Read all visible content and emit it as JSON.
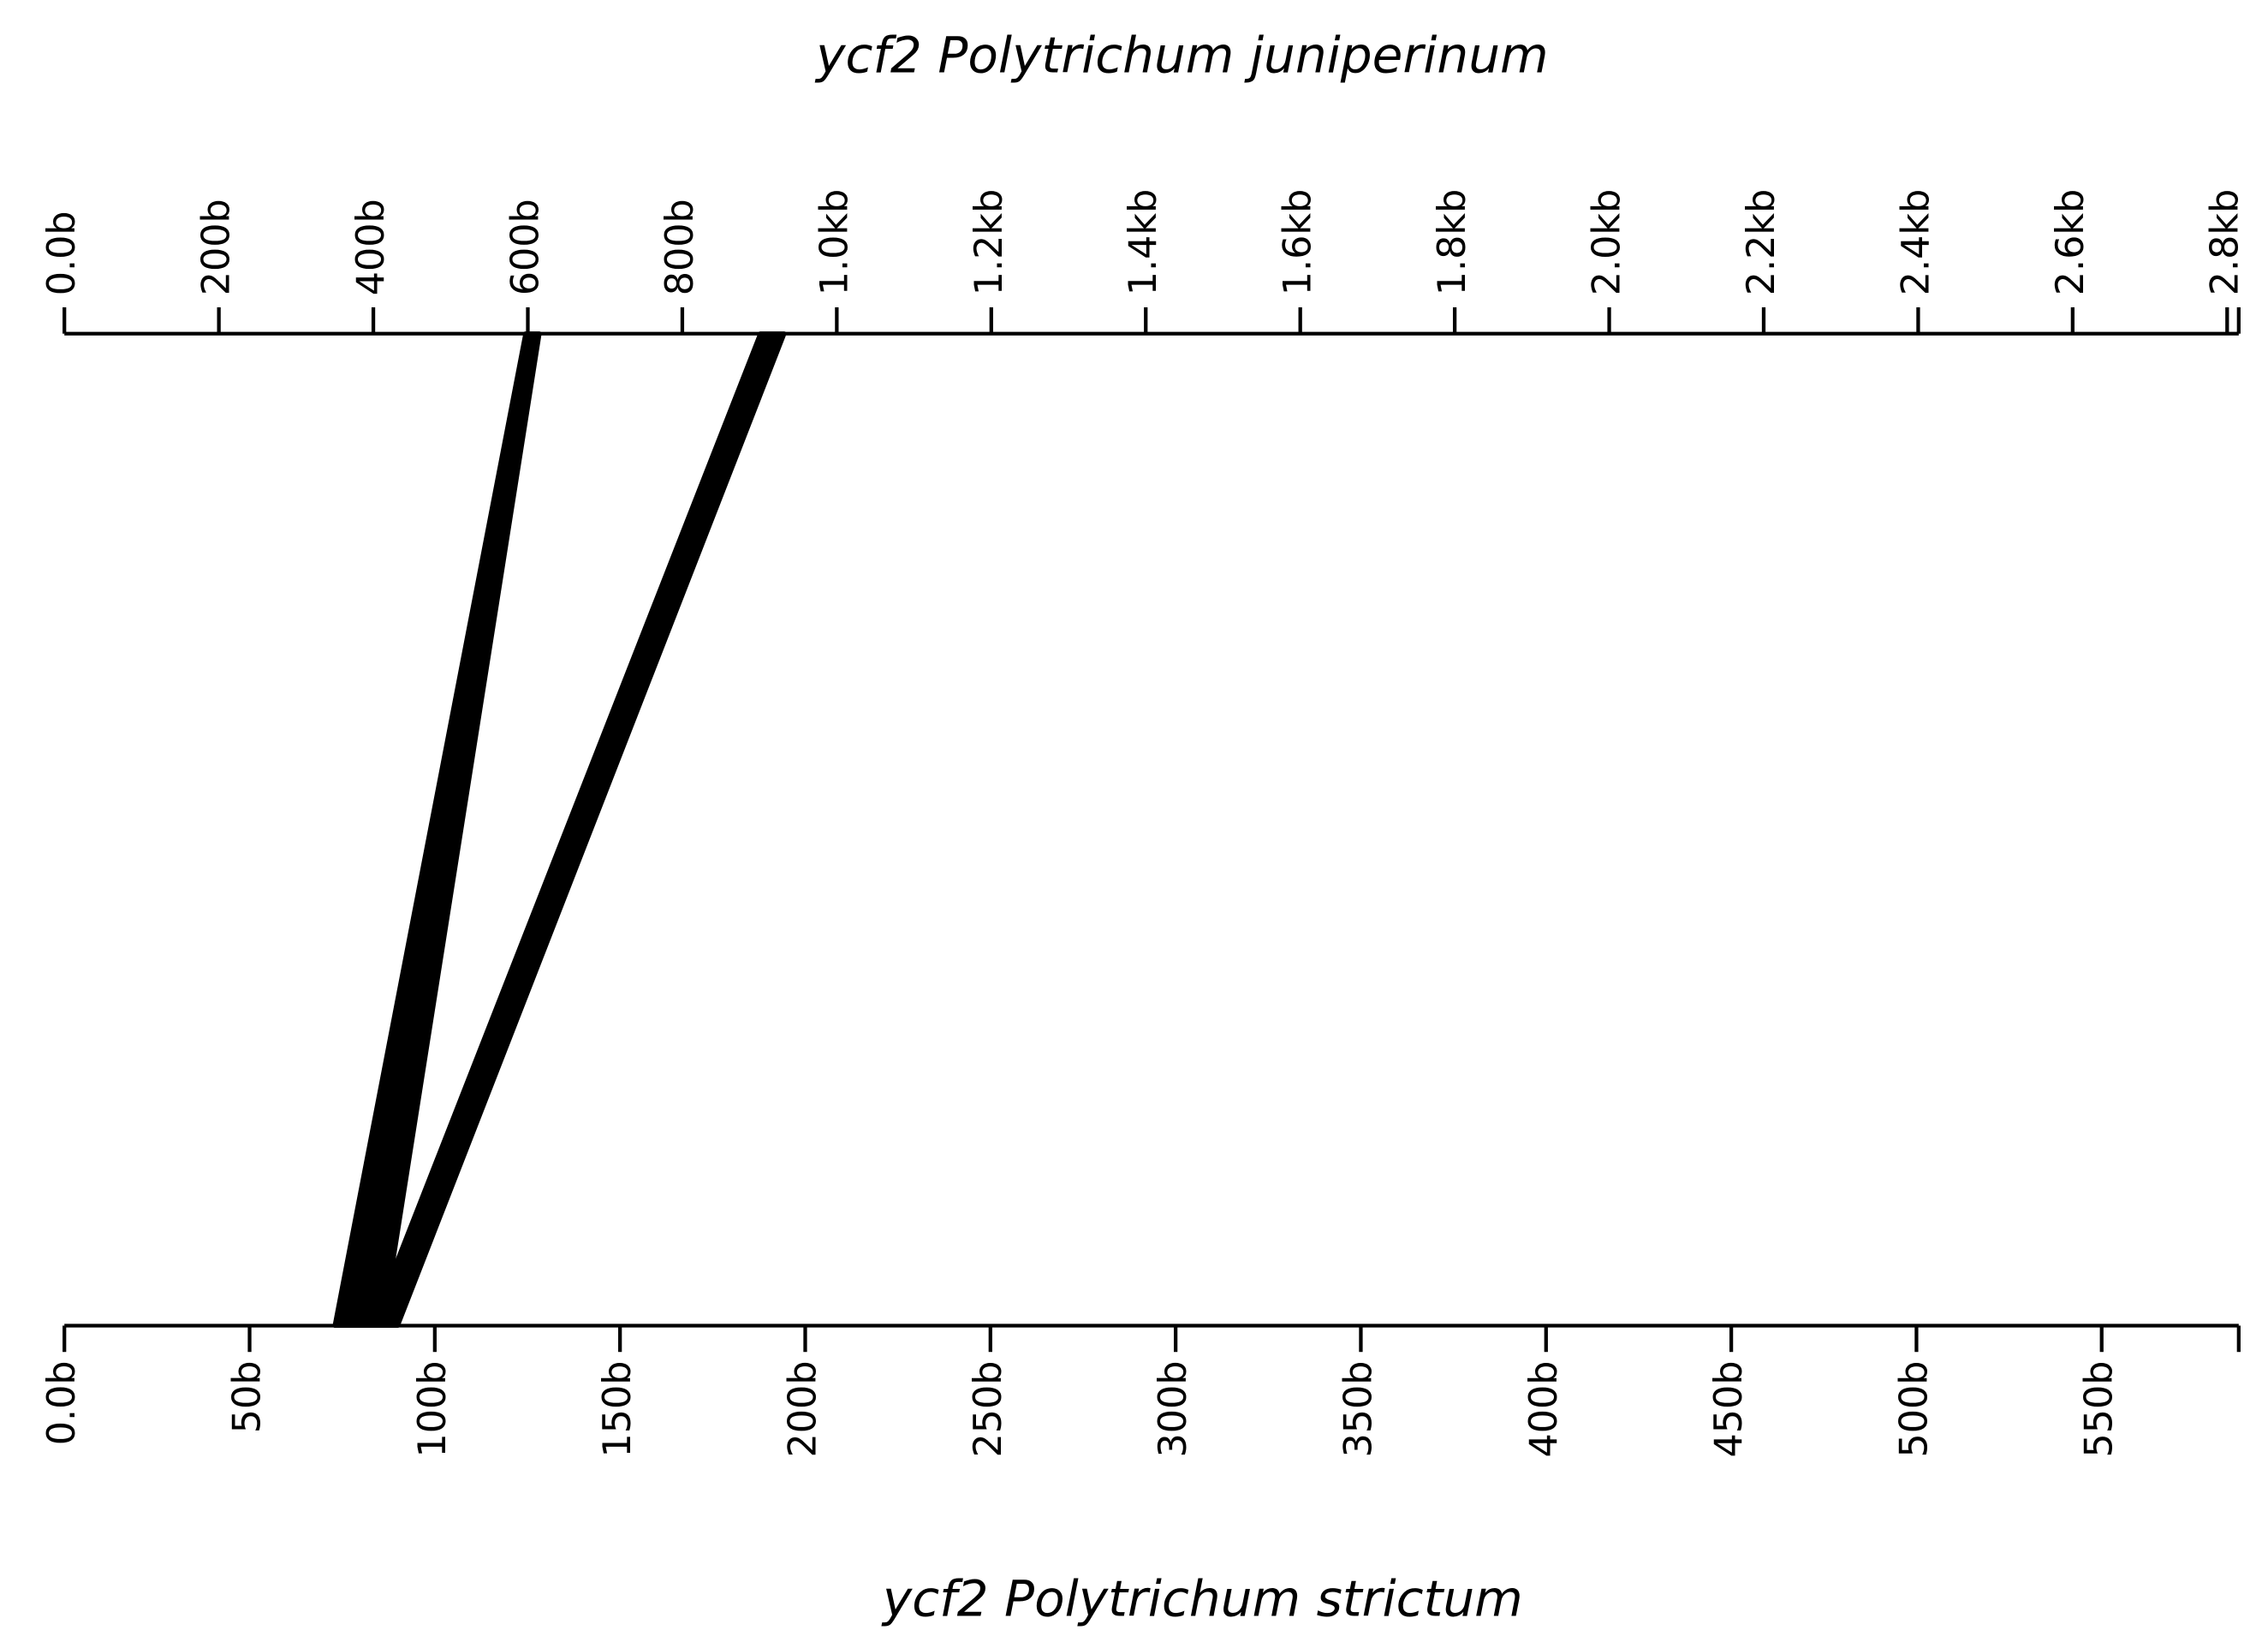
{
  "chart_data": {
    "type": "alignment",
    "top_axis": {
      "title": "ycf2 Polytrichum juniperinum",
      "xlim": [
        0,
        2815
      ],
      "xticks": [
        {
          "value": 0,
          "label": "0.0b"
        },
        {
          "value": 200,
          "label": "200b"
        },
        {
          "value": 400,
          "label": "400b"
        },
        {
          "value": 600,
          "label": "600b"
        },
        {
          "value": 800,
          "label": "800b"
        },
        {
          "value": 1000,
          "label": "1.0kb"
        },
        {
          "value": 1200,
          "label": "1.2kb"
        },
        {
          "value": 1400,
          "label": "1.4kb"
        },
        {
          "value": 1600,
          "label": "1.6kb"
        },
        {
          "value": 1800,
          "label": "1.8kb"
        },
        {
          "value": 2000,
          "label": "2.0kb"
        },
        {
          "value": 2200,
          "label": "2.2kb"
        },
        {
          "value": 2400,
          "label": "2.4kb"
        },
        {
          "value": 2600,
          "label": "2.6kb"
        },
        {
          "value": 2800,
          "label": "2.8kb"
        }
      ]
    },
    "bottom_axis": {
      "title": "ycf2 Polytrichum strictum",
      "xlim": [
        0,
        587
      ],
      "xticks": [
        {
          "value": 0,
          "label": "0.0b"
        },
        {
          "value": 50,
          "label": "50b"
        },
        {
          "value": 100,
          "label": "100b"
        },
        {
          "value": 150,
          "label": "150b"
        },
        {
          "value": 200,
          "label": "200b"
        },
        {
          "value": 250,
          "label": "250b"
        },
        {
          "value": 300,
          "label": "300b"
        },
        {
          "value": 350,
          "label": "350b"
        },
        {
          "value": 400,
          "label": "400b"
        },
        {
          "value": 450,
          "label": "450b"
        },
        {
          "value": 500,
          "label": "500b"
        },
        {
          "value": 550,
          "label": "550b"
        }
      ]
    },
    "links": [
      {
        "top": [
          597,
          615
        ],
        "bottom": [
          73,
          86
        ]
      },
      {
        "top": [
          901,
          932
        ],
        "bottom": [
          83,
          90
        ]
      }
    ],
    "color": "#000000"
  }
}
